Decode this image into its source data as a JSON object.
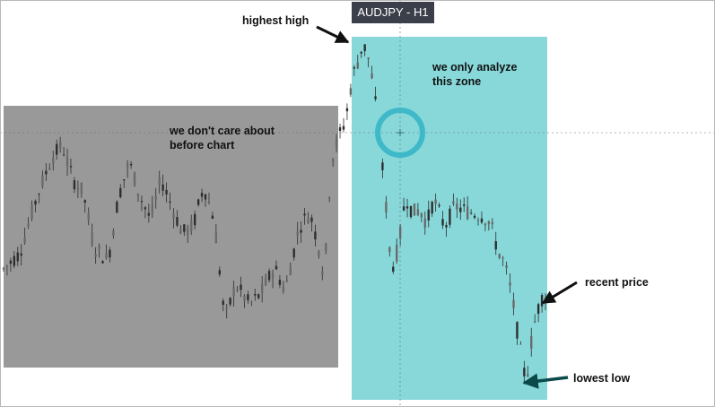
{
  "chart_data": {
    "type": "candlestick",
    "title": "AUDJPY - H1",
    "x": {
      "bars": 150
    },
    "ylim": [
      0,
      100
    ],
    "grid": false,
    "crosshair": true,
    "zones": [
      {
        "name": "before",
        "label": "we don't care about\nbefore chart",
        "from_bar": 0,
        "to_bar": 98,
        "color": "#999999"
      },
      {
        "name": "analyze",
        "label": "we only analyze\nthis zone",
        "from_bar": 103,
        "to_bar": 149,
        "color": "#88d8da"
      }
    ],
    "annotations": [
      {
        "name": "highest-high",
        "label": "highest high"
      },
      {
        "name": "recent-price",
        "label": "recent price"
      },
      {
        "name": "lowest-low",
        "label": "lowest low"
      }
    ],
    "anchors": [
      [
        0,
        33
      ],
      [
        5,
        38
      ],
      [
        10,
        55
      ],
      [
        14,
        66
      ],
      [
        17,
        70
      ],
      [
        20,
        60
      ],
      [
        23,
        56
      ],
      [
        26,
        40
      ],
      [
        30,
        36
      ],
      [
        33,
        55
      ],
      [
        36,
        65
      ],
      [
        39,
        55
      ],
      [
        42,
        48
      ],
      [
        45,
        60
      ],
      [
        48,
        52
      ],
      [
        51,
        44
      ],
      [
        54,
        46
      ],
      [
        57,
        58
      ],
      [
        60,
        48
      ],
      [
        63,
        18
      ],
      [
        66,
        29
      ],
      [
        70,
        23
      ],
      [
        73,
        26
      ],
      [
        77,
        34
      ],
      [
        80,
        27
      ],
      [
        84,
        46
      ],
      [
        87,
        50
      ],
      [
        90,
        38
      ],
      [
        91,
        30
      ],
      [
        93,
        65
      ],
      [
        95,
        72
      ],
      [
        97,
        77
      ],
      [
        99,
        90
      ],
      [
        101,
        96
      ],
      [
        102,
        100
      ],
      [
        104,
        94
      ],
      [
        106,
        78
      ],
      [
        108,
        58
      ],
      [
        110,
        33
      ],
      [
        112,
        40
      ],
      [
        114,
        55
      ],
      [
        116,
        50
      ],
      [
        118,
        51
      ],
      [
        120,
        47
      ],
      [
        122,
        54
      ],
      [
        125,
        46
      ],
      [
        128,
        52
      ],
      [
        130,
        51
      ],
      [
        133,
        50
      ],
      [
        136,
        49
      ],
      [
        138,
        47
      ],
      [
        140,
        39
      ],
      [
        142,
        35
      ],
      [
        144,
        26
      ],
      [
        146,
        12
      ],
      [
        148,
        0
      ],
      [
        150,
        16
      ],
      [
        152,
        24
      ],
      [
        153,
        26
      ]
    ]
  },
  "colors": {
    "background": "#ffffff",
    "candle": "#2d2d2d",
    "before_zone": "#999999",
    "analyze_zone": "#88d8da",
    "marker_ring": "#3fb9c8",
    "arrow": "#111111",
    "lowest_low_arrow": "#0c4a4a"
  }
}
